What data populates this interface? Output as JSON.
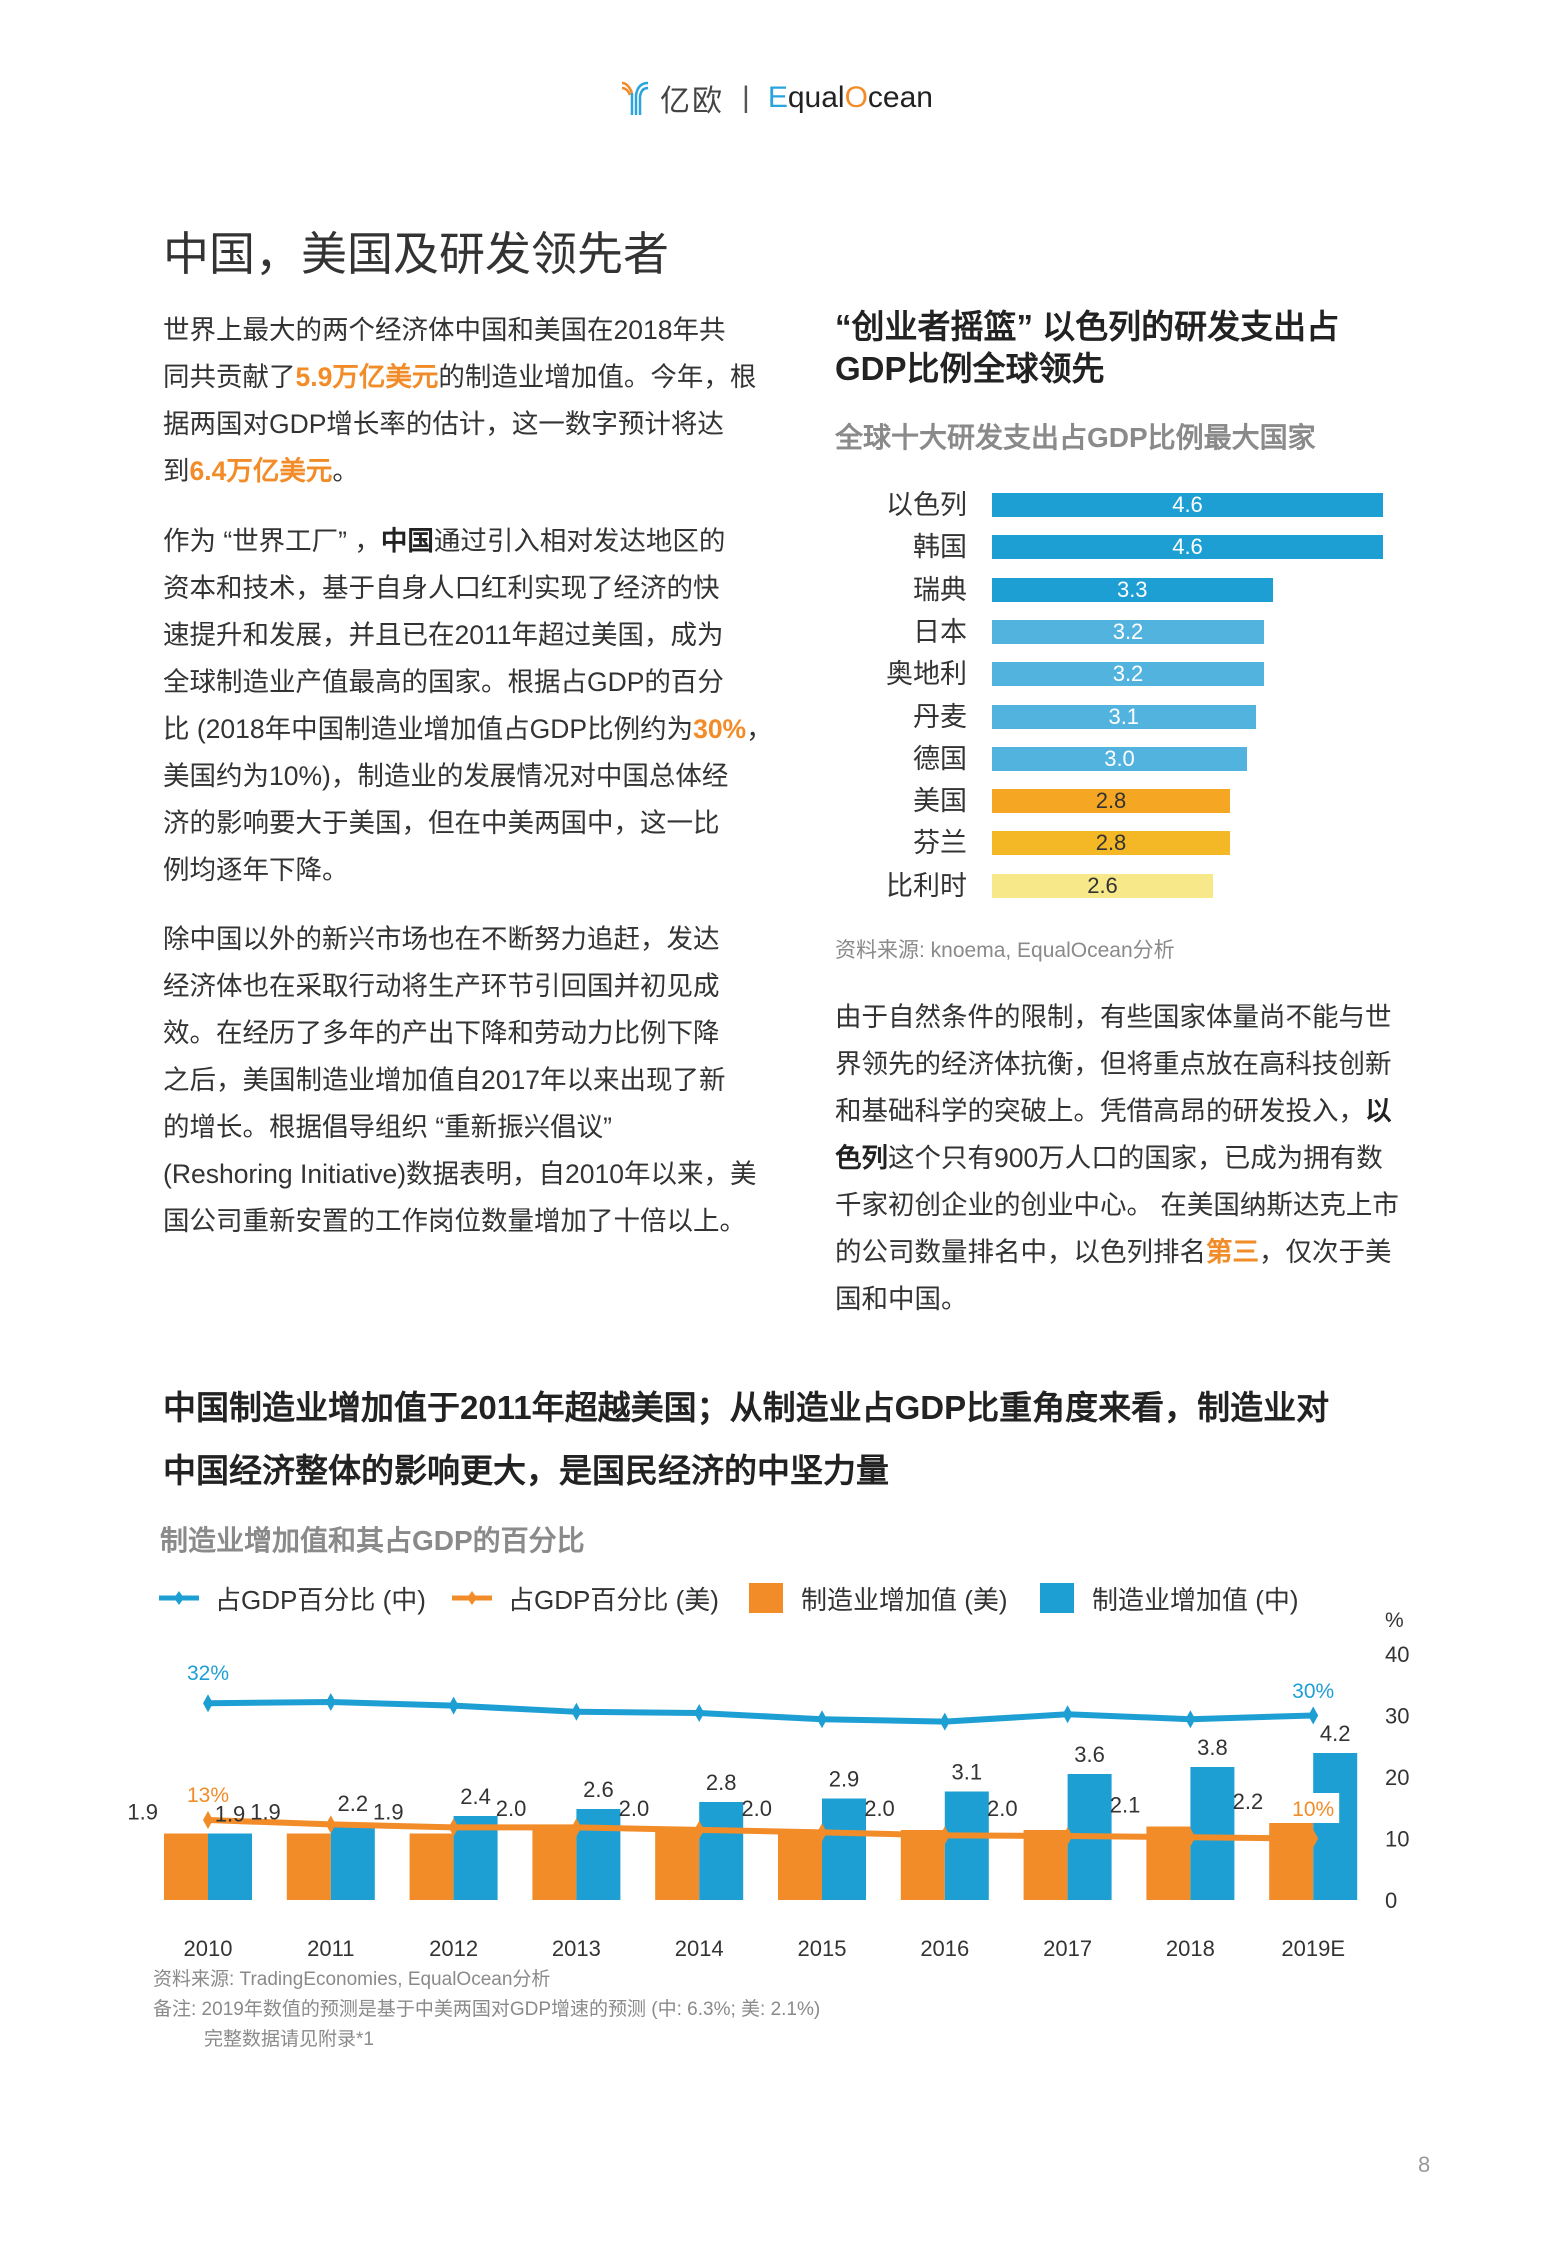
{
  "header": {
    "logo_cn": "亿欧",
    "logo_separator": "|",
    "logo_en_e": "E",
    "logo_en_mid": "qual",
    "logo_en_o": "O",
    "logo_en_end": "cean"
  },
  "page_title": "中国，美国及研发领先者",
  "left_paragraphs": [
    [
      [
        {
          "t": "世界上最大的两个经济体中国和美国在2018年共",
          "s": ""
        }
      ],
      [
        {
          "t": "同共贡献了",
          "s": ""
        },
        {
          "t": "5.9万亿美元",
          "s": "o"
        },
        {
          "t": "的制造业增加值。今年，根",
          "s": ""
        }
      ],
      [
        {
          "t": "据两国对GDP增长率的估计，这一数字预计将达",
          "s": ""
        }
      ],
      [
        {
          "t": "到",
          "s": ""
        },
        {
          "t": "6.4万亿美元",
          "s": "o"
        },
        {
          "t": "。",
          "s": ""
        }
      ]
    ],
    [
      [
        {
          "t": "作为 “世界工厂” ，",
          "s": ""
        },
        {
          "t": "中国",
          "s": "b"
        },
        {
          "t": "通过引入相对发达地区的",
          "s": ""
        }
      ],
      [
        {
          "t": "资本和技术，基于自身人口红利实现了经济的快",
          "s": ""
        }
      ],
      [
        {
          "t": "速提升和发展，并且已在2011年超过美国，成为",
          "s": ""
        }
      ],
      [
        {
          "t": "全球制造业产值最高的国家。根据占GDP的百分",
          "s": ""
        }
      ],
      [
        {
          "t": "比 (2018年中国制造业增加值占GDP比例约为",
          "s": ""
        },
        {
          "t": "30%",
          "s": "o"
        },
        {
          "t": "，",
          "s": ""
        }
      ],
      [
        {
          "t": "美国约为10%)，制造业的发展情况对中国总体经",
          "s": ""
        }
      ],
      [
        {
          "t": "济的影响要大于美国，但在中美两国中，这一比",
          "s": ""
        }
      ],
      [
        {
          "t": "例均逐年下降。",
          "s": ""
        }
      ]
    ],
    [
      [
        {
          "t": "除中国以外的新兴市场也在不断努力追赶，发达",
          "s": ""
        }
      ],
      [
        {
          "t": "经济体也在采取行动将生产环节引回国并初见成",
          "s": ""
        }
      ],
      [
        {
          "t": "效。在经历了多年的产出下降和劳动力比例下降",
          "s": ""
        }
      ],
      [
        {
          "t": "之后，美国制造业增加值自2017年以来出现了新",
          "s": ""
        }
      ],
      [
        {
          "t": "的增长。根据倡导组织 “重新振兴倡议”",
          "s": ""
        }
      ],
      [
        {
          "t": "(Reshoring Initiative)数据表明，自2010年以来，美",
          "s": ""
        }
      ],
      [
        {
          "t": "国公司重新安置的工作岗位数量增加了十倍以上。",
          "s": ""
        }
      ]
    ]
  ],
  "right_heading": [
    "“创业者摇篮” 以色列的研发支出占",
    "GDP比例全球领先"
  ],
  "right_paragraph": [
    [
      {
        "t": "由于自然条件的限制，有些国家体量尚不能与世",
        "s": ""
      }
    ],
    [
      {
        "t": "界领先的经济体抗衡，但将重点放在高科技创新",
        "s": ""
      }
    ],
    [
      {
        "t": "和基础科学的突破上。凭借高昂的研发投入，",
        "s": ""
      },
      {
        "t": "以",
        "s": "b"
      }
    ],
    [
      {
        "t": "色列",
        "s": "b"
      },
      {
        "t": "这个只有900万人口的国家，已成为拥有数",
        "s": ""
      }
    ],
    [
      {
        "t": "千家初创企业的创业中心。 在美国纳斯达克上市",
        "s": ""
      }
    ],
    [
      {
        "t": "的公司数量排名中，以色列排名",
        "s": ""
      },
      {
        "t": "第三",
        "s": "o"
      },
      {
        "t": "，仅次于美",
        "s": ""
      }
    ],
    [
      {
        "t": "国和中国。",
        "s": ""
      }
    ]
  ],
  "chart_data": [
    {
      "type": "bar",
      "orientation": "horizontal",
      "title": "全球十大研发支出占GDP比例最大国家",
      "categories": [
        "以色列",
        "韩国",
        "瑞典",
        "日本",
        "奥地利",
        "丹麦",
        "德国",
        "美国",
        "芬兰",
        "比利时"
      ],
      "values": [
        4.6,
        4.6,
        3.3,
        3.2,
        3.2,
        3.1,
        3.0,
        2.8,
        2.8,
        2.6
      ],
      "value_labels": [
        "4.6",
        "4.6",
        "3.3",
        "3.2",
        "3.2",
        "3.1",
        "3.0",
        "2.8",
        "2.8",
        "2.6"
      ],
      "colors": [
        "#1e9fd4",
        "#1e9fd4",
        "#1e9fd4",
        "#52b4de",
        "#52b4de",
        "#52b4de",
        "#52b4de",
        "#f5a623",
        "#f4b827",
        "#f7e98a"
      ],
      "label_colors": [
        "#ffffff",
        "#ffffff",
        "#ffffff",
        "#ffffff",
        "#ffffff",
        "#ffffff",
        "#ffffff",
        "#333333",
        "#333333",
        "#333333"
      ],
      "source": "资料来源: knoema, EqualOcean分析"
    },
    {
      "type": "bar+line",
      "title": "制造业增加值和其占GDP的百分比",
      "categories": [
        "2010",
        "2011",
        "2012",
        "2013",
        "2014",
        "2015",
        "2016",
        "2017",
        "2018",
        "2019E"
      ],
      "legend": [
        "占GDP百分比 (中)",
        "占GDP百分比 (美)",
        "制造业增加值 (美)",
        "制造业增加值 (中)"
      ],
      "legend_position": "top",
      "y_right_label": "%",
      "y_right_ticks": [
        "0",
        "10",
        "20",
        "30",
        "40"
      ],
      "ylim_right": [
        0,
        40
      ],
      "bar_series": [
        {
          "name": "制造业增加值 (美)",
          "color": "#f28c28",
          "values": [
            1.9,
            1.9,
            1.9,
            2.0,
            2.0,
            2.0,
            2.0,
            2.0,
            2.1,
            2.2
          ],
          "labels": [
            "1.9",
            "1.9",
            "1.9",
            "2.0",
            "2.0",
            "2.0",
            "2.0",
            "2.0",
            "2.1",
            "2.2"
          ]
        },
        {
          "name": "制造业增加值 (中)",
          "color": "#1e9fd4",
          "values": [
            1.9,
            2.2,
            2.4,
            2.6,
            2.8,
            2.9,
            3.1,
            3.6,
            3.8,
            4.2
          ],
          "labels": [
            "1.9",
            "2.2",
            "2.4",
            "2.6",
            "2.8",
            "2.9",
            "3.1",
            "3.6",
            "3.8",
            "4.2"
          ]
        }
      ],
      "line_series": [
        {
          "name": "占GDP百分比 (中)",
          "color": "#1e9fd4",
          "values": [
            32,
            32.2,
            31.6,
            30.6,
            30.4,
            29.4,
            29,
            30.2,
            29.4,
            30
          ],
          "end_labels": [
            "32%",
            "30%"
          ]
        },
        {
          "name": "占GDP百分比 (美)",
          "color": "#f28c28",
          "values": [
            13,
            12.3,
            11.8,
            11.8,
            11.4,
            11,
            10.5,
            10.4,
            10.2,
            10
          ],
          "end_labels": [
            "13%",
            "10%"
          ]
        }
      ],
      "source": "资料来源: TradingEconomies, EqualOcean分析",
      "note": "备注: 2019年数值的预测是基于中美两国对GDP增速的预测 (中: 6.3%; 美: 2.1%)",
      "note2": "完整数据请见附录*1"
    }
  ],
  "bottom_heading": [
    "中国制造业增加值于2011年超越美国；从制造业占GDP比重角度来看，制造业对",
    "中国经济整体的影响更大，是国民经济的中坚力量"
  ],
  "page_number": "8"
}
